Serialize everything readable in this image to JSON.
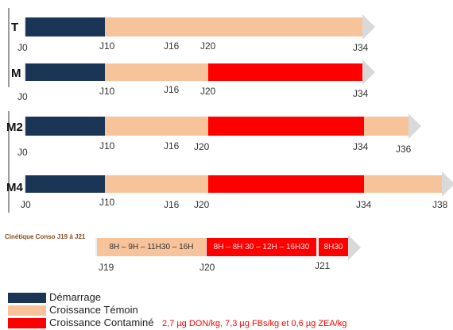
{
  "rows": {
    "T": {
      "label": "T",
      "days": [
        "J0",
        "J10",
        "J16",
        "J20",
        "J34"
      ]
    },
    "M": {
      "label": "M",
      "days": [
        "J0",
        "J10",
        "J16",
        "J20",
        "J34"
      ]
    },
    "M2": {
      "label": "M2",
      "days": [
        "J0",
        "J10",
        "J16",
        "J20",
        "J34",
        "J36"
      ]
    },
    "M4": {
      "label": "M4",
      "days": [
        "J0",
        "J10",
        "J16",
        "J20",
        "J34",
        "J38"
      ]
    }
  },
  "kinetics": {
    "title": "Cinétique Conso J19 à J21",
    "segment1": "8H – 9H – 11H30 – 16H",
    "segment2": "8H – 8H 30 – 12H – 16H30",
    "segment3": "8H30",
    "days": [
      "J19",
      "J20",
      "J21"
    ]
  },
  "legend": {
    "items": [
      {
        "label": "Démarrage",
        "color": "#1b3556"
      },
      {
        "label": "Croissance Témoin",
        "color": "#f6c39b"
      },
      {
        "label": "Croissance Contaminé",
        "color": "#ff0000"
      }
    ],
    "note": "2,7 µg DON/kg, 7,3 µg FBs/kg et 0,6 µg ZEA/kg"
  },
  "colors": {
    "demarrage": "#1b3556",
    "temoin": "#f6c39b",
    "contamine": "#ff0000",
    "arrow": "#d9d9d9"
  }
}
